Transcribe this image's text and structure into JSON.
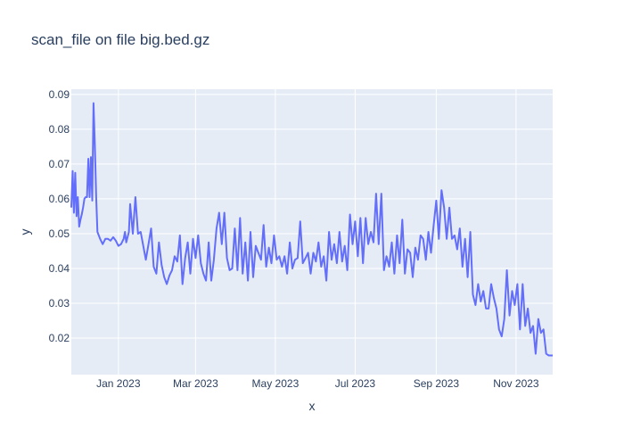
{
  "chart_data": {
    "type": "line",
    "title": "scan_file on file big.bed.gz",
    "xlabel": "x",
    "ylabel": "y",
    "xlim": [
      "2022-11-26",
      "2023-11-29"
    ],
    "ylim": [
      0.0095,
      0.0915
    ],
    "x_ticks": [
      {
        "value": "2023-01-01",
        "label": "Jan 2023"
      },
      {
        "value": "2023-03-01",
        "label": "Mar 2023"
      },
      {
        "value": "2023-05-01",
        "label": "May 2023"
      },
      {
        "value": "2023-07-01",
        "label": "Jul 2023"
      },
      {
        "value": "2023-09-01",
        "label": "Sep 2023"
      },
      {
        "value": "2023-11-01",
        "label": "Nov 2023"
      }
    ],
    "y_ticks": [
      0.02,
      0.03,
      0.04,
      0.05,
      0.06,
      0.07,
      0.08,
      0.09
    ],
    "grid": true,
    "legend": "none",
    "colors": {
      "line": "#636efa",
      "plot_bg": "#e5ecf6",
      "grid": "#ffffff"
    },
    "series": [
      {
        "x": [
          "2022-11-26",
          "2022-11-27",
          "2022-11-28",
          "2022-11-29",
          "2022-11-30",
          "2022-12-01",
          "2022-12-02",
          "2022-12-03",
          "2022-12-04",
          "2022-12-05",
          "2022-12-06",
          "2022-12-07",
          "2022-12-08",
          "2022-12-09",
          "2022-12-10",
          "2022-12-11",
          "2022-12-12",
          "2022-12-13",
          "2022-12-14",
          "2022-12-15",
          "2022-12-16",
          "2022-12-17",
          "2022-12-18",
          "2022-12-20",
          "2022-12-22",
          "2022-12-24",
          "2022-12-26",
          "2022-12-28",
          "2022-12-30",
          "2023-01-01",
          "2023-01-03",
          "2023-01-05",
          "2023-01-06",
          "2023-01-07",
          "2023-01-08",
          "2023-01-09",
          "2023-01-10",
          "2023-01-12",
          "2023-01-14",
          "2023-01-16",
          "2023-01-18",
          "2023-01-20",
          "2023-01-22",
          "2023-01-24",
          "2023-01-26",
          "2023-01-28",
          "2023-01-30",
          "2023-02-01",
          "2023-02-03",
          "2023-02-05",
          "2023-02-07",
          "2023-02-09",
          "2023-02-11",
          "2023-02-13",
          "2023-02-15",
          "2023-02-17",
          "2023-02-19",
          "2023-02-21",
          "2023-02-23",
          "2023-02-25",
          "2023-02-27",
          "2023-03-01",
          "2023-03-03",
          "2023-03-05",
          "2023-03-07",
          "2023-03-09",
          "2023-03-11",
          "2023-03-13",
          "2023-03-15",
          "2023-03-17",
          "2023-03-19",
          "2023-03-21",
          "2023-03-23",
          "2023-03-25",
          "2023-03-27",
          "2023-03-29",
          "2023-03-31",
          "2023-04-02",
          "2023-04-04",
          "2023-04-06",
          "2023-04-08",
          "2023-04-10",
          "2023-04-12",
          "2023-04-14",
          "2023-04-16",
          "2023-04-18",
          "2023-04-20",
          "2023-04-22",
          "2023-04-24",
          "2023-04-26",
          "2023-04-28",
          "2023-04-30",
          "2023-05-02",
          "2023-05-04",
          "2023-05-06",
          "2023-05-08",
          "2023-05-10",
          "2023-05-12",
          "2023-05-14",
          "2023-05-16",
          "2023-05-18",
          "2023-05-20",
          "2023-05-22",
          "2023-05-24",
          "2023-05-26",
          "2023-05-28",
          "2023-05-30",
          "2023-06-01",
          "2023-06-03",
          "2023-06-05",
          "2023-06-07",
          "2023-06-09",
          "2023-06-11",
          "2023-06-13",
          "2023-06-15",
          "2023-06-17",
          "2023-06-19",
          "2023-06-21",
          "2023-06-23",
          "2023-06-25",
          "2023-06-27",
          "2023-06-29",
          "2023-07-01",
          "2023-07-03",
          "2023-07-05",
          "2023-07-07",
          "2023-07-09",
          "2023-07-11",
          "2023-07-13",
          "2023-07-15",
          "2023-07-17",
          "2023-07-19",
          "2023-07-21",
          "2023-07-23",
          "2023-07-25",
          "2023-07-27",
          "2023-07-29",
          "2023-07-31",
          "2023-08-02",
          "2023-08-04",
          "2023-08-06",
          "2023-08-08",
          "2023-08-10",
          "2023-08-12",
          "2023-08-14",
          "2023-08-16",
          "2023-08-18",
          "2023-08-20",
          "2023-08-22",
          "2023-08-24",
          "2023-08-26",
          "2023-08-28",
          "2023-08-30",
          "2023-09-01",
          "2023-09-03",
          "2023-09-05",
          "2023-09-07",
          "2023-09-09",
          "2023-09-11",
          "2023-09-13",
          "2023-09-15",
          "2023-09-17",
          "2023-09-19",
          "2023-09-21",
          "2023-09-23",
          "2023-09-25",
          "2023-09-27",
          "2023-09-29",
          "2023-10-01",
          "2023-10-03",
          "2023-10-05",
          "2023-10-07",
          "2023-10-09",
          "2023-10-11",
          "2023-10-13",
          "2023-10-15",
          "2023-10-17",
          "2023-10-19",
          "2023-10-21",
          "2023-10-23",
          "2023-10-25",
          "2023-10-27",
          "2023-10-29",
          "2023-10-31",
          "2023-11-02",
          "2023-11-04",
          "2023-11-06",
          "2023-11-08",
          "2023-11-10",
          "2023-11-12",
          "2023-11-14",
          "2023-11-16",
          "2023-11-18",
          "2023-11-20",
          "2023-11-22",
          "2023-11-24",
          "2023-11-26",
          "2023-11-28",
          "2023-11-29"
        ],
        "y": [
          0.0575,
          0.068,
          0.056,
          0.0675,
          0.055,
          0.0605,
          0.052,
          0.054,
          0.0555,
          0.0575,
          0.06,
          0.0605,
          0.0605,
          0.0715,
          0.0605,
          0.072,
          0.0595,
          0.0875,
          0.0755,
          0.0605,
          0.0505,
          0.0495,
          0.0485,
          0.047,
          0.0485,
          0.0485,
          0.048,
          0.049,
          0.048,
          0.0465,
          0.047,
          0.0485,
          0.0505,
          0.0475,
          0.049,
          0.0505,
          0.0585,
          0.05,
          0.0605,
          0.05,
          0.0505,
          0.0465,
          0.0425,
          0.047,
          0.0515,
          0.0405,
          0.0385,
          0.0475,
          0.041,
          0.0375,
          0.0355,
          0.038,
          0.0395,
          0.0435,
          0.042,
          0.0495,
          0.0355,
          0.043,
          0.0475,
          0.0385,
          0.0485,
          0.043,
          0.0495,
          0.0415,
          0.0385,
          0.0365,
          0.0475,
          0.0365,
          0.0425,
          0.0515,
          0.056,
          0.047,
          0.056,
          0.043,
          0.0395,
          0.04,
          0.0515,
          0.0395,
          0.0545,
          0.0385,
          0.0475,
          0.0365,
          0.0505,
          0.0375,
          0.0465,
          0.0445,
          0.0425,
          0.0525,
          0.0405,
          0.046,
          0.0415,
          0.0495,
          0.0425,
          0.0435,
          0.0405,
          0.0435,
          0.0385,
          0.0475,
          0.04,
          0.0425,
          0.043,
          0.0535,
          0.0415,
          0.043,
          0.0445,
          0.0385,
          0.0445,
          0.042,
          0.0475,
          0.0405,
          0.0435,
          0.0365,
          0.0505,
          0.0425,
          0.047,
          0.0415,
          0.0505,
          0.042,
          0.0465,
          0.0395,
          0.0555,
          0.047,
          0.0535,
          0.0435,
          0.0545,
          0.0415,
          0.0545,
          0.047,
          0.0505,
          0.0475,
          0.0615,
          0.047,
          0.0615,
          0.0395,
          0.0435,
          0.0405,
          0.0475,
          0.0385,
          0.0495,
          0.0415,
          0.054,
          0.0385,
          0.0455,
          0.0445,
          0.0375,
          0.046,
          0.0425,
          0.0495,
          0.0485,
          0.0425,
          0.0505,
          0.0445,
          0.0525,
          0.0595,
          0.0485,
          0.0625,
          0.0575,
          0.0485,
          0.0575,
          0.0485,
          0.0495,
          0.0455,
          0.0515,
          0.0405,
          0.0485,
          0.0375,
          0.0505,
          0.0325,
          0.0295,
          0.0355,
          0.0305,
          0.0335,
          0.0285,
          0.0285,
          0.0355,
          0.0315,
          0.0285,
          0.0225,
          0.0205,
          0.0255,
          0.0395,
          0.0265,
          0.0335,
          0.0295,
          0.0355,
          0.0225,
          0.0355,
          0.0235,
          0.0285,
          0.0215,
          0.0235,
          0.0155,
          0.0255,
          0.0215,
          0.0225,
          0.0155,
          0.015,
          0.015,
          0.015
        ]
      }
    ]
  }
}
